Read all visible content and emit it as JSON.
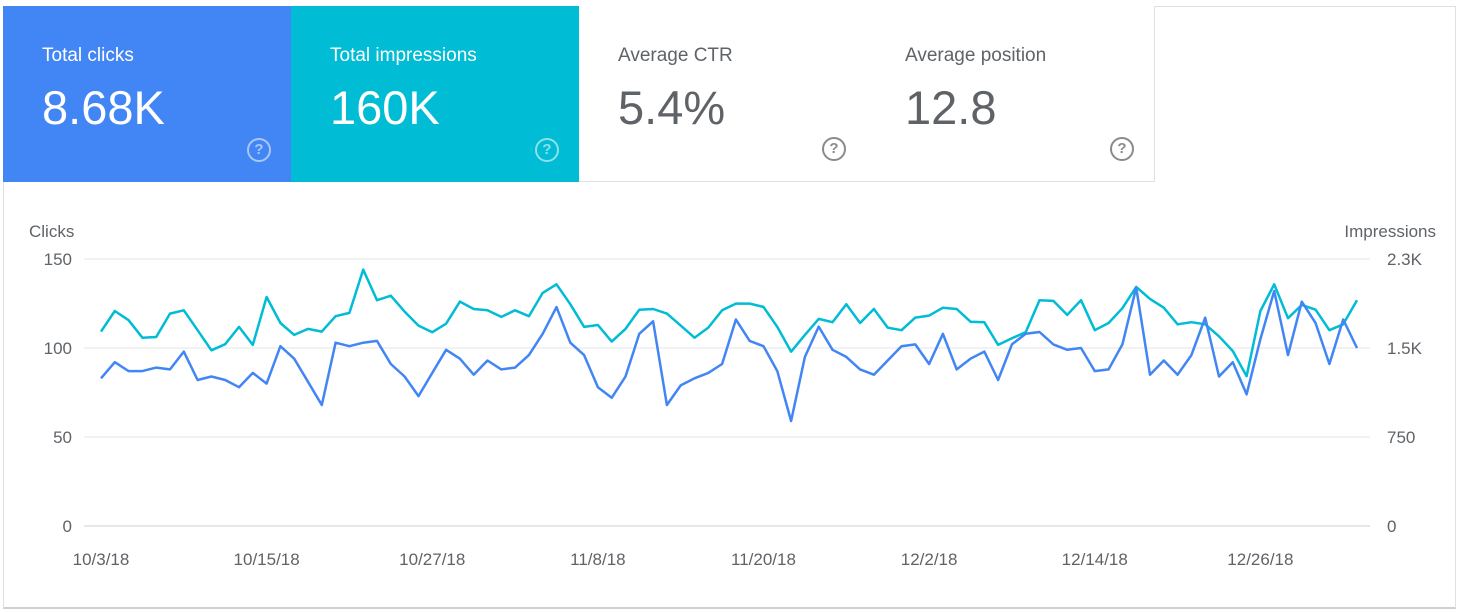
{
  "cards": [
    {
      "label": "Total clicks",
      "value": "8.68K"
    },
    {
      "label": "Total impressions",
      "value": "160K"
    },
    {
      "label": "Average CTR",
      "value": "5.4%"
    },
    {
      "label": "Average position",
      "value": "12.8"
    }
  ],
  "help_glyph": "?",
  "colors": {
    "clicks": "#4285f4",
    "impressions": "#00bcd4",
    "grid": "#e6e6e6"
  },
  "chart_data": {
    "type": "line",
    "x_start": "2018-10-03",
    "x_step_days": 1,
    "ylabel_left": "Clicks",
    "ylabel_right": "Impressions",
    "ylim_left": [
      0,
      150
    ],
    "ylim_right": [
      0,
      2250
    ],
    "yticks_left": [
      {
        "v": 0,
        "label": "0"
      },
      {
        "v": 50,
        "label": "50"
      },
      {
        "v": 100,
        "label": "100"
      },
      {
        "v": 150,
        "label": "150"
      }
    ],
    "yticks_right": [
      {
        "v": 0,
        "label": "0"
      },
      {
        "v": 750,
        "label": "750"
      },
      {
        "v": 1500,
        "label": "1.5K"
      },
      {
        "v": 2250,
        "label": "2.3K"
      }
    ],
    "xticks": [
      {
        "i": 0,
        "label": "10/3/18"
      },
      {
        "i": 12,
        "label": "10/15/18"
      },
      {
        "i": 24,
        "label": "10/27/18"
      },
      {
        "i": 36,
        "label": "11/8/18"
      },
      {
        "i": 48,
        "label": "11/20/18"
      },
      {
        "i": 60,
        "label": "12/2/18"
      },
      {
        "i": 72,
        "label": "12/14/18"
      },
      {
        "i": 84,
        "label": "12/26/18"
      }
    ],
    "grid": true,
    "series": [
      {
        "name": "Clicks",
        "axis": "left",
        "values": [
          83,
          92,
          87,
          87,
          89,
          88,
          98,
          82,
          84,
          82,
          78,
          86,
          80,
          101,
          94,
          81,
          68,
          103,
          101,
          103,
          104,
          91,
          84,
          73,
          86,
          99,
          94,
          85,
          93,
          88,
          89,
          96,
          108,
          123,
          103,
          96,
          78,
          72,
          84,
          108,
          115,
          68,
          79,
          83,
          86,
          91,
          116,
          104,
          101,
          87,
          59,
          95,
          112,
          99,
          95,
          88,
          85,
          93,
          101,
          102,
          91,
          108,
          88,
          94,
          98,
          82,
          102,
          108,
          109,
          102,
          99,
          100,
          87,
          88,
          102,
          134,
          85,
          93,
          85,
          96,
          117,
          84,
          92,
          74,
          105,
          132,
          96,
          126,
          114,
          91,
          116,
          100
        ]
      },
      {
        "name": "Impressions",
        "axis": "right",
        "values": [
          1638,
          1812,
          1734,
          1587,
          1593,
          1790,
          1818,
          1650,
          1481,
          1532,
          1678,
          1526,
          1930,
          1711,
          1610,
          1661,
          1638,
          1768,
          1796,
          2161,
          1903,
          1941,
          1807,
          1689,
          1633,
          1705,
          1891,
          1829,
          1818,
          1762,
          1818,
          1768,
          1964,
          2037,
          1869,
          1678,
          1694,
          1554,
          1661,
          1823,
          1829,
          1790,
          1689,
          1587,
          1672,
          1818,
          1874,
          1874,
          1846,
          1678,
          1469,
          1610,
          1745,
          1717,
          1869,
          1711,
          1829,
          1672,
          1650,
          1756,
          1773,
          1840,
          1829,
          1722,
          1717,
          1526,
          1582,
          1633,
          1903,
          1897,
          1779,
          1903,
          1650,
          1711,
          1835,
          2015,
          1914,
          1840,
          1700,
          1717,
          1700,
          1599,
          1475,
          1262,
          1812,
          2037,
          1751,
          1863,
          1823,
          1650,
          1700,
          1903
        ]
      }
    ]
  }
}
